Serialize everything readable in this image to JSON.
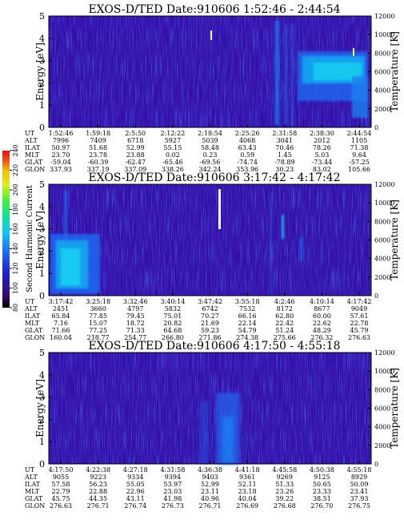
{
  "chart_data": [
    {
      "type": "heatmap",
      "title": "EXOS-D/TED   Date:910606   1:52:46 - 2:44:54",
      "ylabel": "Energy [eV]",
      "ylabel_right": "Temperature [K]",
      "ylim": [
        0,
        5
      ],
      "y_ticks": [
        "0",
        "1",
        "2",
        "3",
        "4",
        "5"
      ],
      "right_ylim": [
        0,
        12000
      ],
      "right_ticks": [
        "0",
        "2000",
        "4000",
        "6000",
        "8000",
        "10000",
        "12000"
      ],
      "row_labels": [
        "UT",
        "ALT",
        "ILAT",
        "MLT",
        "GLAT",
        "GLON"
      ],
      "columns": [
        [
          "1:52:46",
          "7996",
          "50.97",
          "23.70",
          "-59.04",
          "337.93"
        ],
        [
          "1:59:18",
          "7409",
          "51.68",
          "23.78",
          "-60.39",
          "337.19"
        ],
        [
          "2:5:50",
          "6718",
          "52.99",
          "23.88",
          "-62.47",
          "337.09"
        ],
        [
          "2:12:22",
          "5927",
          "55.15",
          "0.02",
          "-65.46",
          "338.26"
        ],
        [
          "2:18:54",
          "5039",
          "58.48",
          "0.23",
          "-69.56",
          "342.24"
        ],
        [
          "2:25:26",
          "4068",
          "63.43",
          "0.59",
          "-74.74",
          "353.96"
        ],
        [
          "2:31:58",
          "3041",
          "70.46",
          "1.45",
          "-78.89",
          "30.23"
        ],
        [
          "2:38:30",
          "2012",
          "78.26",
          "5.03",
          "-73.44",
          "83.02"
        ],
        [
          "2:44:54",
          "1105",
          "71.38",
          "9.64",
          "-57.25",
          "105.66"
        ]
      ]
    },
    {
      "type": "heatmap",
      "title": "EXOS-D/TED   Date:910606   3:17:42 - 4:17:42",
      "ylabel": "Energy [eV]",
      "ylabel_right": "Temperature [K]",
      "ylim": [
        0,
        5
      ],
      "y_ticks": [
        "0",
        "1",
        "2",
        "3",
        "4",
        "5"
      ],
      "right_ylim": [
        0,
        12000
      ],
      "right_ticks": [
        "0",
        "2000",
        "4000",
        "6000",
        "8000",
        "10000",
        "12000"
      ],
      "row_labels": [
        "UT",
        "ALT",
        "ILAT",
        "MLT",
        "GLAT",
        "GLON"
      ],
      "columns": [
        [
          "3:17:42",
          "2451",
          "65.84",
          "7.16",
          "71.66",
          "160.04"
        ],
        [
          "3:25:18",
          "3660",
          "77.85",
          "15.07",
          "77.25",
          "218.77"
        ],
        [
          "3:32:46",
          "4797",
          "79.45",
          "18.72",
          "71.33",
          "254.77"
        ],
        [
          "3:40:14",
          "5832",
          "75.01",
          "20.82",
          "64.68",
          "266.80"
        ],
        [
          "3:47:42",
          "6742",
          "70.27",
          "21.69",
          "59.23",
          "271.86"
        ],
        [
          "3:55:18",
          "7532",
          "66.16",
          "22.14",
          "54.79",
          "274.38"
        ],
        [
          "4:2:46",
          "8172",
          "62.80",
          "22.42",
          "51.24",
          "275.66"
        ],
        [
          "4:10:14",
          "8677",
          "60.00",
          "22.62",
          "48.29",
          "276.32"
        ],
        [
          "4:17:42",
          "9049",
          "57.61",
          "22.78",
          "45.79",
          "276.63"
        ]
      ]
    },
    {
      "type": "heatmap",
      "title": "EXOS-D/TED   Date:910606   4:17:50 - 4:55:18",
      "ylabel": "Energy [eV]",
      "ylabel_right": "Temperature [K]",
      "ylim": [
        0,
        5
      ],
      "y_ticks": [
        "0",
        "1",
        "2",
        "3",
        "4",
        "5"
      ],
      "right_ylim": [
        0,
        12000
      ],
      "right_ticks": [
        "0",
        "2000",
        "4000",
        "6000",
        "8000",
        "10000",
        "12000"
      ],
      "row_labels": [
        "UT",
        "ALT",
        "ILAT",
        "MLT",
        "GLAT",
        "GLON"
      ],
      "columns": [
        [
          "4:17:50",
          "9055",
          "57.58",
          "22.79",
          "45.75",
          "276.63"
        ],
        [
          "4:22:38",
          "9223",
          "56.23",
          "22.88",
          "44.35",
          "276.71"
        ],
        [
          "4:27:18",
          "9334",
          "55.05",
          "22.96",
          "43.11",
          "276.74"
        ],
        [
          "4:31:58",
          "9394",
          "53.97",
          "23.03",
          "41.98",
          "276.73"
        ],
        [
          "4:36:38",
          "9403",
          "52.99",
          "23.11",
          "40.96",
          "276.71"
        ],
        [
          "4:41:18",
          "9361",
          "52.11",
          "23.18",
          "40.04",
          "276.69"
        ],
        [
          "4:45:58",
          "9269",
          "51.33",
          "23.26",
          "39.22",
          "276.68"
        ],
        [
          "4:50:38",
          "9125",
          "50.65",
          "23.33",
          "38.51",
          "276.70"
        ],
        [
          "4:55:18",
          "8929",
          "50.09",
          "23.41",
          "37.93",
          "276.75"
        ]
      ]
    }
  ],
  "colorbar": {
    "label": "Second Harmonic Current",
    "ticks": [
      "80",
      "100",
      "120",
      "140",
      "160",
      "180",
      "200",
      "220",
      "240"
    ],
    "range": [
      80,
      240
    ],
    "colors": [
      "#000000",
      "#3a0a6e",
      "#2020c8",
      "#1e6ef0",
      "#10c8f0",
      "#10e0a0",
      "#40f040",
      "#d8f020",
      "#f0c010",
      "#f05010",
      "#e01010"
    ]
  },
  "background_color": "#3510a8"
}
